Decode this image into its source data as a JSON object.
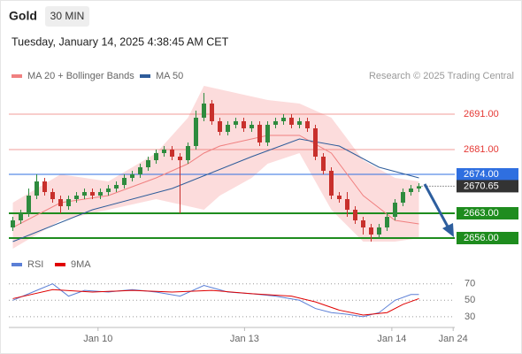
{
  "header": {
    "symbol": "Gold",
    "interval": "30 MIN",
    "timestamp": "Tuesday, January 14, 2025 4:38:45 AM CET"
  },
  "chart_data": [
    {
      "type": "candlestick",
      "source": "Research © 2025 Trading Central",
      "up_color": "#2e8b3e",
      "down_color": "#c8302c",
      "xlim": [
        -0.5,
        55.5
      ],
      "ylim": [
        2652,
        2700
      ],
      "open": [
        2659,
        2661,
        2663,
        2668,
        2672,
        2669,
        2667,
        2665,
        2667,
        2668,
        2669,
        2668,
        2669,
        2670,
        2671,
        2673,
        2674,
        2676,
        2678,
        2680,
        2681,
        2679,
        2678,
        2682,
        2690,
        2694,
        2689,
        2686,
        2688,
        2689,
        2687,
        2688,
        2683,
        2688,
        2689,
        2690,
        2688,
        2689,
        2687,
        2679,
        2675,
        2668,
        2667,
        2664,
        2661,
        2659,
        2657,
        2659,
        2662,
        2666,
        2669,
        2670
      ],
      "high": [
        2662,
        2664,
        2670,
        2674,
        2673,
        2670,
        2668,
        2668,
        2669,
        2670,
        2670,
        2670,
        2671,
        2672,
        2674,
        2675,
        2677,
        2679,
        2681,
        2682,
        2682,
        2680,
        2683,
        2692,
        2697,
        2695,
        2690,
        2689,
        2690,
        2690,
        2689,
        2689,
        2689,
        2690,
        2691,
        2691,
        2690,
        2690,
        2688,
        2680,
        2676,
        2669,
        2669,
        2665,
        2662,
        2660,
        2660,
        2663,
        2667,
        2670,
        2671,
        2671.5
      ],
      "low": [
        2658,
        2660,
        2662,
        2667,
        2668,
        2666,
        2663,
        2664,
        2666,
        2667,
        2667,
        2667,
        2668,
        2669,
        2670,
        2672,
        2673,
        2675,
        2677,
        2679,
        2678,
        2663,
        2677,
        2681,
        2689,
        2688,
        2685,
        2685,
        2687,
        2686,
        2686,
        2682,
        2682,
        2687,
        2688,
        2687,
        2687,
        2686,
        2678,
        2674,
        2667,
        2666,
        2662,
        2660,
        2657,
        2655,
        2656,
        2658,
        2661,
        2665,
        2668,
        2669
      ],
      "close": [
        2661,
        2663,
        2668,
        2672,
        2669,
        2667,
        2665,
        2667,
        2668,
        2669,
        2668,
        2669,
        2670,
        2671,
        2673,
        2674,
        2676,
        2678,
        2680,
        2681,
        2679,
        2678,
        2682,
        2690,
        2694,
        2689,
        2686,
        2688,
        2689,
        2687,
        2688,
        2683,
        2688,
        2689,
        2690,
        2688,
        2689,
        2687,
        2679,
        2675,
        2668,
        2667,
        2664,
        2661,
        2659,
        2657,
        2659,
        2662,
        2666,
        2669,
        2670,
        2670.65
      ],
      "series": [
        {
          "name": "MA 20 + Bollinger Bands",
          "color": "#f08080",
          "band_color": "#fcdcdc",
          "x": [
            0,
            6,
            12,
            18,
            22,
            24,
            26,
            30,
            32,
            36,
            40,
            44,
            48,
            51
          ],
          "values": [
            2659,
            2666,
            2668,
            2673,
            2677,
            2680,
            2682,
            2684,
            2685,
            2685,
            2680,
            2668,
            2661,
            2660
          ],
          "upper": [
            2666,
            2674,
            2672,
            2680,
            2690,
            2699,
            2698,
            2696,
            2695,
            2694,
            2690,
            2678,
            2673,
            2672
          ],
          "lower": [
            2653,
            2661,
            2664,
            2667,
            2665,
            2664,
            2668,
            2673,
            2677,
            2680,
            2664,
            2655,
            2655,
            2656
          ]
        },
        {
          "name": "MA 50",
          "color": "#2e5c9a",
          "x": [
            0,
            10,
            20,
            30,
            36,
            41,
            46,
            51
          ],
          "values": [
            2655,
            2664,
            2670,
            2679,
            2684,
            2682,
            2676,
            2673
          ]
        }
      ],
      "levels": [
        {
          "value": 2691,
          "label": "2691.00",
          "color": "#e53935",
          "boxed": false
        },
        {
          "value": 2681,
          "label": "2681.00",
          "color": "#e53935",
          "boxed": false
        },
        {
          "value": 2674,
          "label": "2674.00",
          "color": "#2f6fe0",
          "boxed": true
        },
        {
          "value": 2663,
          "label": "2663.00",
          "color": "#1e8c1e",
          "boxed": true
        },
        {
          "value": 2656,
          "label": "2656.00",
          "color": "#1e8c1e",
          "boxed": true
        }
      ],
      "last_price": {
        "value": 2670.65,
        "label": "2670.65",
        "color": "#333333"
      }
    },
    {
      "type": "line",
      "xlim": [
        -0.5,
        55.5
      ],
      "ylim": [
        18,
        88
      ],
      "yticks": [
        30,
        50,
        70
      ],
      "grid": true,
      "xticks": [
        {
          "value": 10.7,
          "label": "Jan 10"
        },
        {
          "value": 29.1,
          "label": "Jan 13"
        },
        {
          "value": 47.6,
          "label": "Jan 14"
        },
        {
          "value": 55.3,
          "label": "Jan 24"
        }
      ],
      "series": [
        {
          "name": "RSI",
          "color": "#5b7fd6",
          "x": [
            0,
            3,
            5,
            7,
            9,
            12,
            15,
            18,
            21,
            24,
            27,
            30,
            33,
            36,
            38,
            40,
            42,
            44,
            46,
            48,
            50,
            51
          ],
          "values": [
            50,
            62,
            70,
            55,
            62,
            60,
            63,
            60,
            55,
            68,
            60,
            58,
            55,
            50,
            40,
            35,
            33,
            30,
            35,
            50,
            57,
            57
          ]
        },
        {
          "name": "9MA",
          "color": "#e00000",
          "x": [
            0,
            5,
            10,
            15,
            20,
            25,
            30,
            35,
            38,
            41,
            44,
            47,
            49,
            51
          ],
          "values": [
            52,
            63,
            60,
            62,
            60,
            62,
            58,
            55,
            48,
            38,
            32,
            35,
            45,
            52
          ]
        }
      ]
    }
  ]
}
